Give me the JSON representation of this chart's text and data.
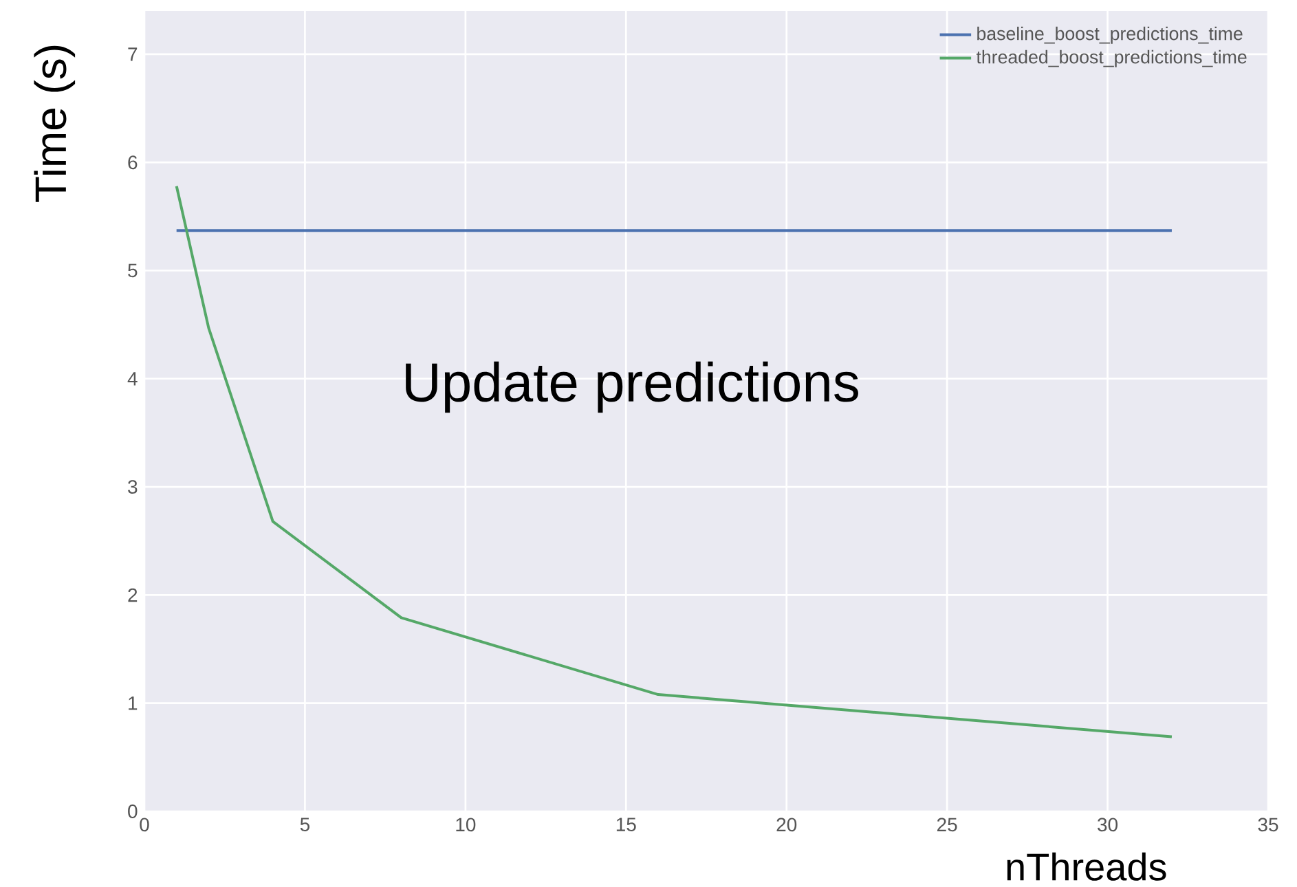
{
  "chart_data": {
    "type": "line",
    "xlabel": "nThreads",
    "ylabel": "Time (s)",
    "annotations": [
      "Update predictions"
    ],
    "xlim": [
      0,
      35
    ],
    "ylim": [
      0,
      7.4
    ],
    "xticks": [
      0,
      5,
      10,
      15,
      20,
      25,
      30,
      35
    ],
    "yticks": [
      0,
      1,
      2,
      3,
      4,
      5,
      6,
      7
    ],
    "grid": true,
    "legend": "top right",
    "series": [
      {
        "name": "baseline_boost_predictions_time",
        "color": "#4c72b0",
        "x": [
          1,
          2,
          4,
          8,
          16,
          32
        ],
        "values": [
          5.37,
          5.37,
          5.37,
          5.37,
          5.37,
          5.37
        ]
      },
      {
        "name": "threaded_boost_predictions_time",
        "color": "#55a868",
        "x": [
          1,
          2,
          4,
          8,
          16,
          32
        ],
        "values": [
          5.78,
          4.47,
          2.68,
          1.79,
          1.08,
          0.69
        ]
      }
    ]
  }
}
